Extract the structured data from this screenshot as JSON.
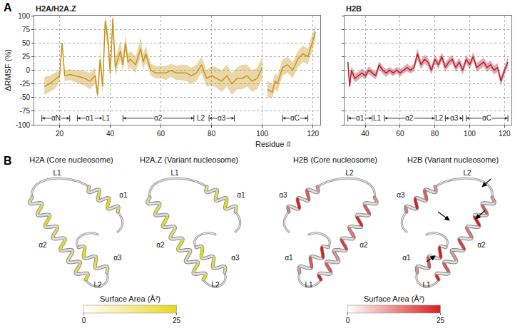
{
  "panel_a": {
    "label": "A"
  },
  "chart_data": [
    {
      "type": "line",
      "title": "H2A/H2A.Z",
      "xlabel": "Residue #",
      "ylabel": "ΔRMSF (%)",
      "xlim": [
        10,
        123
      ],
      "xticks": [
        20,
        40,
        60,
        80,
        100,
        120
      ],
      "ylim": [
        -100,
        100
      ],
      "yticks": [
        -100,
        -75,
        -50,
        -25,
        0,
        25,
        50,
        75,
        100
      ],
      "grid": true,
      "color": "#c8961e",
      "x": [
        14,
        16,
        18,
        20,
        21,
        22,
        24,
        26,
        28,
        30,
        32,
        34,
        35,
        36,
        37,
        38,
        39,
        40,
        41,
        42,
        44,
        45,
        46,
        47,
        48,
        50,
        52,
        53,
        54,
        56,
        58,
        60,
        62,
        64,
        66,
        68,
        70,
        72,
        74,
        76,
        78,
        80,
        82,
        84,
        86,
        88,
        90,
        92,
        94,
        96,
        98,
        100,
        101,
        102,
        104,
        105,
        106,
        108,
        110,
        112,
        114,
        116,
        118,
        120,
        121
      ],
      "values": [
        -30,
        -25,
        -18,
        -10,
        50,
        -10,
        -8,
        -10,
        -12,
        -15,
        -20,
        -10,
        -45,
        20,
        -30,
        90,
        60,
        -5,
        95,
        5,
        35,
        10,
        50,
        15,
        20,
        10,
        40,
        15,
        30,
        0,
        -5,
        -5,
        -5,
        0,
        -5,
        -5,
        -5,
        -10,
        -5,
        10,
        -15,
        -10,
        -15,
        -20,
        -10,
        -25,
        -15,
        -15,
        -10,
        -20,
        -15,
        5,
        null,
        -35,
        -40,
        -20,
        -25,
        5,
        10,
        0,
        20,
        30,
        25,
        55,
        70
      ],
      "lower": [
        -45,
        -40,
        -35,
        -22,
        42,
        -20,
        -18,
        -22,
        -25,
        -28,
        -35,
        -25,
        -55,
        5,
        -45,
        70,
        40,
        -20,
        75,
        -10,
        20,
        -5,
        35,
        0,
        5,
        -5,
        25,
        0,
        15,
        -10,
        -15,
        -15,
        -18,
        -12,
        -18,
        -18,
        -20,
        -25,
        -20,
        -5,
        -30,
        -28,
        -32,
        -40,
        -30,
        -45,
        -35,
        -35,
        -30,
        -40,
        -35,
        -15,
        null,
        -50,
        -50,
        -35,
        -40,
        -10,
        -5,
        -15,
        5,
        15,
        10,
        40,
        55
      ],
      "upper": [
        -12,
        -10,
        -5,
        0,
        55,
        0,
        2,
        0,
        0,
        -2,
        -5,
        5,
        -30,
        35,
        -15,
        100,
        80,
        10,
        100,
        20,
        55,
        25,
        65,
        30,
        35,
        25,
        60,
        30,
        45,
        12,
        8,
        8,
        8,
        12,
        8,
        10,
        10,
        5,
        10,
        25,
        0,
        8,
        5,
        0,
        10,
        -5,
        5,
        10,
        10,
        0,
        5,
        25,
        null,
        -20,
        -25,
        -5,
        -10,
        20,
        25,
        15,
        35,
        45,
        40,
        70,
        85
      ],
      "structure": [
        {
          "label": "αN",
          "start": 13,
          "end": 24
        },
        {
          "label": "α1",
          "start": 27,
          "end": 37
        },
        {
          "label": "L1",
          "start": 38,
          "end": 39
        },
        {
          "label": "α2",
          "start": 45,
          "end": 73
        },
        {
          "label": "L2",
          "start": 75,
          "end": 77
        },
        {
          "label": "α3",
          "start": 79,
          "end": 89
        },
        {
          "label": "αC",
          "start": 108,
          "end": 118
        }
      ]
    },
    {
      "type": "line",
      "title": "H2B",
      "xlim": [
        28,
        124
      ],
      "xticks": [
        40,
        60,
        80,
        100,
        120
      ],
      "ylim": [
        -100,
        100
      ],
      "yticks": [
        -100,
        -75,
        -50,
        -25,
        0,
        25,
        50,
        75,
        100
      ],
      "grid": true,
      "tick_labels": "x",
      "color": "#b22030",
      "x": [
        30,
        31,
        32,
        34,
        36,
        38,
        40,
        42,
        44,
        46,
        48,
        50,
        52,
        54,
        56,
        58,
        60,
        62,
        64,
        66,
        68,
        70,
        72,
        74,
        76,
        78,
        80,
        82,
        84,
        86,
        88,
        90,
        92,
        94,
        96,
        98,
        100,
        102,
        104,
        106,
        108,
        110,
        112,
        114,
        116,
        118,
        120,
        122
      ],
      "values": [
        15,
        -30,
        0,
        -15,
        -10,
        -5,
        -10,
        0,
        -5,
        -10,
        10,
        0,
        -5,
        0,
        -5,
        0,
        -5,
        0,
        5,
        0,
        5,
        30,
        10,
        20,
        15,
        0,
        20,
        10,
        25,
        5,
        15,
        20,
        5,
        15,
        0,
        20,
        10,
        25,
        5,
        10,
        15,
        5,
        10,
        0,
        5,
        -20,
        0,
        15
      ],
      "lower": [
        5,
        -38,
        -10,
        -22,
        -18,
        -12,
        -17,
        -7,
        -12,
        -17,
        2,
        -7,
        -12,
        -6,
        -11,
        -6,
        -11,
        -6,
        -2,
        -6,
        -2,
        20,
        2,
        12,
        7,
        -8,
        12,
        2,
        16,
        -3,
        7,
        12,
        -3,
        7,
        -8,
        12,
        2,
        17,
        -3,
        2,
        7,
        -3,
        2,
        -8,
        -3,
        -28,
        -8,
        5
      ],
      "upper": [
        25,
        -20,
        8,
        -6,
        -3,
        3,
        -2,
        7,
        2,
        -3,
        17,
        7,
        2,
        6,
        1,
        6,
        2,
        6,
        12,
        7,
        12,
        40,
        18,
        28,
        23,
        8,
        28,
        18,
        33,
        13,
        23,
        28,
        13,
        23,
        8,
        28,
        18,
        33,
        13,
        18,
        23,
        13,
        18,
        8,
        13,
        -12,
        8,
        25
      ],
      "structure": [
        {
          "label": "α1",
          "start": 30,
          "end": 44
        },
        {
          "label": "L1",
          "start": 46,
          "end": 48
        },
        {
          "label": "α2",
          "start": 51,
          "end": 80
        },
        {
          "label": "L2",
          "start": 82,
          "end": 83
        },
        {
          "label": "α3",
          "start": 86,
          "end": 96
        },
        {
          "label": "αC",
          "start": 98,
          "end": 122
        }
      ]
    }
  ],
  "panel_b": {
    "label": "B",
    "groups": [
      {
        "colorbar": {
          "title": "Surface Area (Å²)",
          "range": [
            0,
            25
          ],
          "ticks": [
            0,
            25
          ],
          "color": "#e6d81e"
        },
        "structures": [
          {
            "title": "H2A (Core nucleosome)",
            "labels": [
              "L1",
              "α1",
              "α2",
              "L2",
              "α3"
            ]
          },
          {
            "title": "H2A.Z (Variant nucleosome)",
            "labels": [
              "L1",
              "α1",
              "α2",
              "L2",
              "α3"
            ]
          }
        ]
      },
      {
        "colorbar": {
          "title": "Surface Area (Å²)",
          "range": [
            0,
            25
          ],
          "ticks": [
            0,
            25
          ],
          "color": "#d81e1e"
        },
        "structures": [
          {
            "title": "H2B (Core nucleosome)",
            "labels": [
              "L2",
              "α3",
              "α2",
              "L1",
              "α1"
            ]
          },
          {
            "title": "H2B (Variant nucleosome)",
            "labels": [
              "L2",
              "α3",
              "α2",
              "L1",
              "α1"
            ],
            "arrows": true
          }
        ]
      }
    ]
  }
}
